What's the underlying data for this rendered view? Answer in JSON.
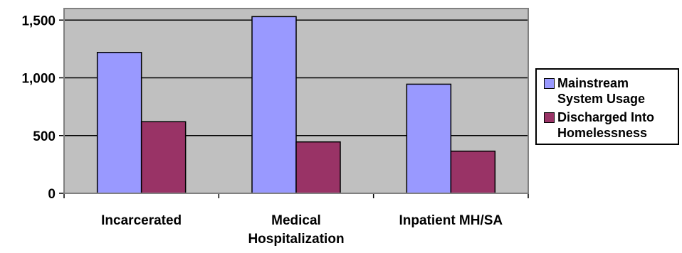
{
  "chart_data": {
    "type": "bar",
    "title": "",
    "xlabel": "",
    "ylabel": "",
    "categories": [
      "Incarcerated",
      "Medical\nHospitalization",
      "Inpatient MH/SA"
    ],
    "series": [
      {
        "name": "Mainstream\nSystem Usage",
        "color": "#9999ff",
        "values": [
          1220,
          1530,
          945
        ]
      },
      {
        "name": "Discharged Into\nHomelessness",
        "color": "#993366",
        "values": [
          620,
          445,
          365
        ]
      }
    ],
    "ylim": [
      0,
      1600
    ],
    "yticks": [
      0,
      500,
      1000,
      1500
    ],
    "ytick_labels": [
      "0",
      "500",
      "1,000",
      "1,500"
    ],
    "plot_background": "#c0c0c0",
    "grid": true,
    "legend_position": "right"
  }
}
